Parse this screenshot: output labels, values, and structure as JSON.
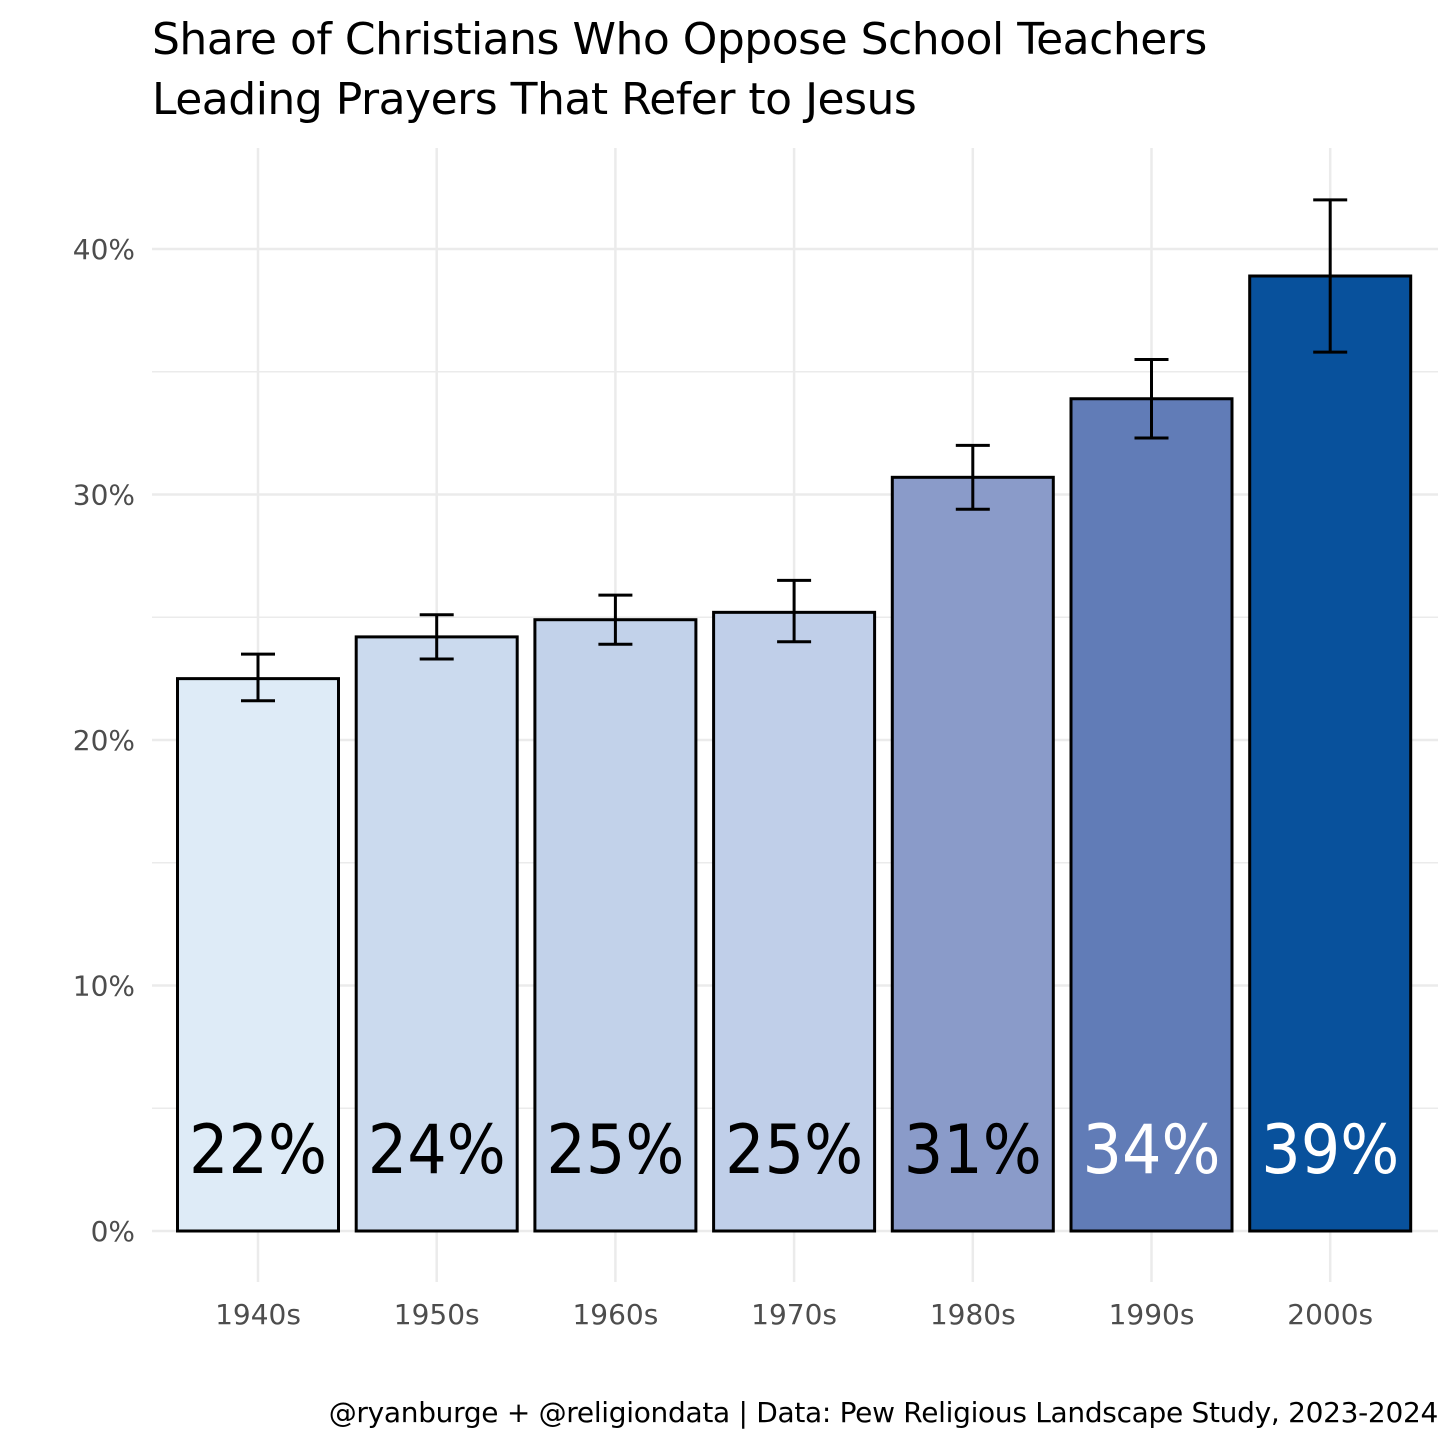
{
  "chart_data": {
    "type": "bar",
    "title_lines": [
      "Share of Christians Who Oppose School Teachers",
      "Leading Prayers That Refer to Jesus"
    ],
    "caption": "@ryanburge + @religiondata | Data: Pew Religious Landscape Study, 2023-2024",
    "xlabel": "",
    "ylabel": "",
    "ylim": [
      0,
      0.44
    ],
    "grid": true,
    "y_ticks": [
      0,
      0.1,
      0.2,
      0.3,
      0.4
    ],
    "y_tick_labels": [
      "0%",
      "10%",
      "20%",
      "30%",
      "40%"
    ],
    "y_minor_ticks": [
      0.05,
      0.15,
      0.25,
      0.35
    ],
    "categories": [
      "1940s",
      "1950s",
      "1960s",
      "1970s",
      "1980s",
      "1990s",
      "2000s"
    ],
    "values": [
      0.225,
      0.242,
      0.249,
      0.252,
      0.307,
      0.339,
      0.389
    ],
    "error_low": [
      0.216,
      0.233,
      0.239,
      0.24,
      0.294,
      0.323,
      0.358
    ],
    "error_high": [
      0.235,
      0.251,
      0.259,
      0.265,
      0.32,
      0.355,
      0.42
    ],
    "value_labels": [
      "22%",
      "24%",
      "25%",
      "25%",
      "31%",
      "34%",
      "39%"
    ],
    "colors": [
      "#deebf7",
      "#cbdaee",
      "#c2d2ea",
      "#c0cfe9",
      "#8a9bc9",
      "#617cb7",
      "#08519c"
    ],
    "label_colors": [
      "#000000",
      "#000000",
      "#000000",
      "#000000",
      "#000000",
      "#ffffff",
      "#ffffff"
    ],
    "grid_color": "#ebebeb",
    "axis_text_color": "#4d4d4d"
  }
}
